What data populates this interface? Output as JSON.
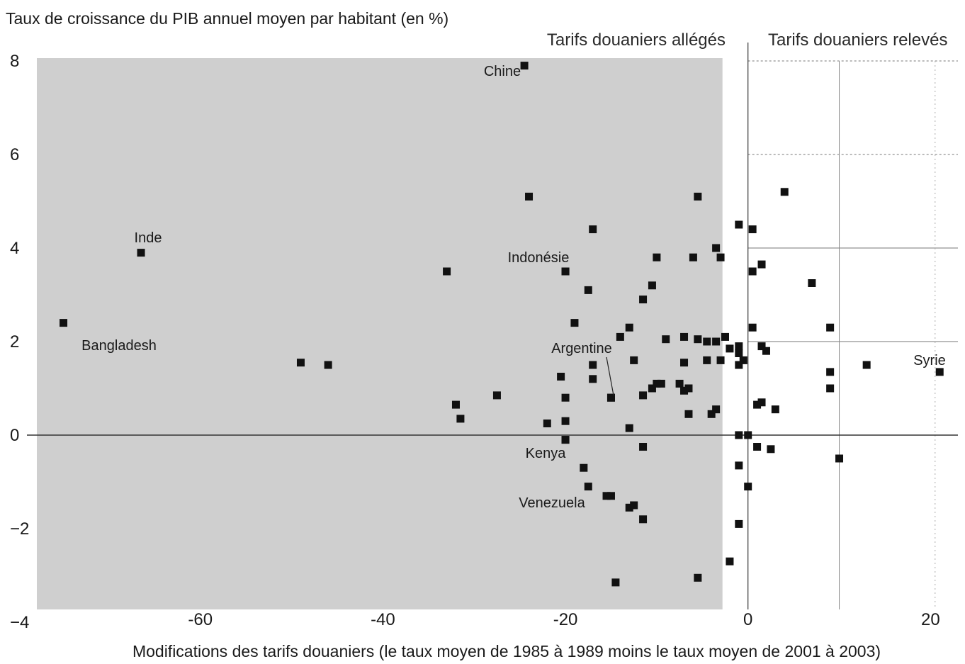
{
  "chart_data": {
    "type": "scatter",
    "title": "",
    "ylabel": "Taux de croissance du PIB annuel moyen par habitant (en %)",
    "xlabel": "Modifications des tarifs douaniers (le taux moyen de 1985 à 1989 moins le taux moyen de 2001 à 2003)",
    "xlim": [
      -79,
      23
    ],
    "ylim": [
      -4,
      8
    ],
    "x_ticks": [
      -60,
      -40,
      -20,
      0,
      20
    ],
    "y_ticks": [
      8,
      6,
      4,
      2,
      0,
      -2,
      -4
    ],
    "x_tick_labels": [
      "-60",
      "-40",
      "-20",
      "0",
      "20"
    ],
    "y_tick_labels": [
      "8",
      "6",
      "4",
      "2",
      "0",
      "−2",
      "−4"
    ],
    "regions": {
      "lowered": "Tarifs douaniers allégés",
      "raised": "Tarifs douaniers relevés"
    },
    "colors": {
      "shade": "#cfcfcf",
      "point": "#111111",
      "axis": "#333333"
    },
    "labeled_points": [
      {
        "name": "Chine",
        "x": -24.5,
        "y": 7.9
      },
      {
        "name": "Inde",
        "x": -66.5,
        "y": 3.9
      },
      {
        "name": "Bangladesh",
        "x": -75,
        "y": 2.4
      },
      {
        "name": "Indonésie",
        "x": -20,
        "y": 3.5
      },
      {
        "name": "Argentine",
        "x": -15,
        "y": 0.8
      },
      {
        "name": "Kenya",
        "x": -20,
        "y": -0.1
      },
      {
        "name": "Venezuela",
        "x": -15.5,
        "y": -1.3
      },
      {
        "name": "Syrie",
        "x": 21,
        "y": 1.35
      }
    ],
    "points": [
      [
        -24,
        5.1
      ],
      [
        -5.5,
        5.1
      ],
      [
        -17,
        4.4
      ],
      [
        -33,
        3.5
      ],
      [
        -20,
        3.5
      ],
      [
        -17.5,
        3.1
      ],
      [
        -10,
        3.8
      ],
      [
        -6,
        3.8
      ],
      [
        -3.5,
        4.0
      ],
      [
        -3,
        3.8
      ],
      [
        -10.5,
        3.2
      ],
      [
        -11.5,
        2.9
      ],
      [
        -19,
        2.4
      ],
      [
        -14,
        2.1
      ],
      [
        -13,
        2.3
      ],
      [
        -9,
        2.05
      ],
      [
        -7,
        2.1
      ],
      [
        -5.5,
        2.05
      ],
      [
        -4.5,
        2.0
      ],
      [
        -3.5,
        2.0
      ],
      [
        -2.5,
        2.1
      ],
      [
        -2,
        1.85
      ],
      [
        -1,
        1.9
      ],
      [
        -1,
        1.75
      ],
      [
        -0.5,
        1.6
      ],
      [
        -1,
        1.5
      ],
      [
        -3,
        1.6
      ],
      [
        -4.5,
        1.6
      ],
      [
        -7,
        1.55
      ],
      [
        -12.5,
        1.6
      ],
      [
        -17,
        1.5
      ],
      [
        -20.5,
        1.25
      ],
      [
        -17,
        1.2
      ],
      [
        -10,
        1.1
      ],
      [
        -9.5,
        1.1
      ],
      [
        -7.5,
        1.1
      ],
      [
        -6.5,
        1.0
      ],
      [
        -7,
        0.95
      ],
      [
        -10.5,
        1.0
      ],
      [
        -11.5,
        0.85
      ],
      [
        -15,
        0.8
      ],
      [
        -20,
        0.8
      ],
      [
        -27.5,
        0.85
      ],
      [
        -32,
        0.65
      ],
      [
        -31.5,
        0.35
      ],
      [
        -22,
        0.25
      ],
      [
        -20,
        0.3
      ],
      [
        -13,
        0.15
      ],
      [
        -6.5,
        0.45
      ],
      [
        -4,
        0.45
      ],
      [
        -3.5,
        0.55
      ],
      [
        -49,
        1.55
      ],
      [
        -46,
        1.5
      ],
      [
        -20,
        -0.1
      ],
      [
        -11.5,
        -0.25
      ],
      [
        -1,
        0.0
      ],
      [
        0,
        0.0
      ],
      [
        -18,
        -0.7
      ],
      [
        -17.5,
        -1.1
      ],
      [
        -15,
        -1.3
      ],
      [
        -13,
        -1.55
      ],
      [
        -12.5,
        -1.5
      ],
      [
        -11.5,
        -1.8
      ],
      [
        -1,
        -0.65
      ],
      [
        0,
        -1.1
      ],
      [
        -1,
        -1.9
      ],
      [
        -2,
        -2.7
      ],
      [
        -5.5,
        -3.05
      ],
      [
        -14.5,
        -3.15
      ],
      [
        4,
        5.2
      ],
      [
        -1,
        4.5
      ],
      [
        0.5,
        4.4
      ],
      [
        0.5,
        3.5
      ],
      [
        1.5,
        3.65
      ],
      [
        7,
        3.25
      ],
      [
        0.5,
        2.3
      ],
      [
        9,
        2.3
      ],
      [
        1.5,
        1.9
      ],
      [
        2,
        1.8
      ],
      [
        13,
        1.5
      ],
      [
        9,
        1.35
      ],
      [
        9,
        1.0
      ],
      [
        1,
        0.65
      ],
      [
        1.5,
        0.7
      ],
      [
        3,
        0.55
      ],
      [
        1,
        -0.25
      ],
      [
        2.5,
        -0.3
      ],
      [
        10,
        -0.5
      ]
    ]
  }
}
